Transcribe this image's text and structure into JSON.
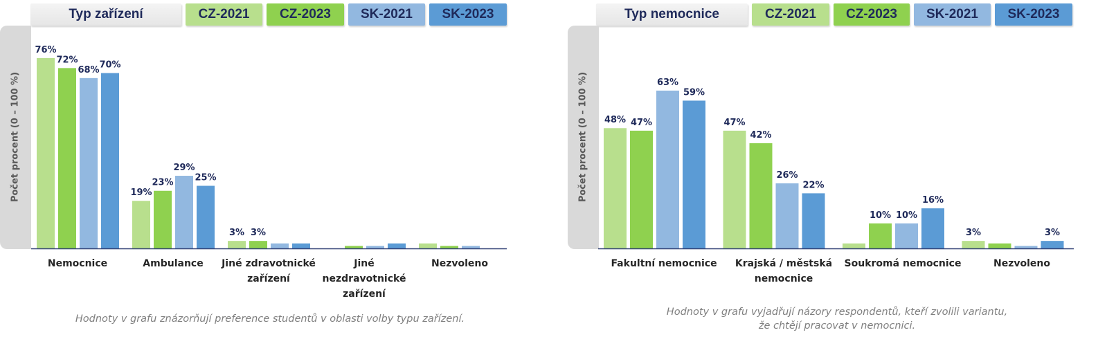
{
  "legend": {
    "series": [
      {
        "name": "CZ-2021",
        "color": "#b8df8d"
      },
      {
        "name": "CZ-2023",
        "color": "#8fd14f"
      },
      {
        "name": "SK-2021",
        "color": "#92b8e0"
      },
      {
        "name": "SK-2023",
        "color": "#5b9bd5"
      }
    ]
  },
  "chart_data": [
    {
      "type": "bar",
      "title": "Typ zařízení",
      "ylabel": "Počet procent  (0 – 100 %)",
      "ylim": [
        0,
        100
      ],
      "grid": false,
      "legend_position": "top",
      "categories": [
        [
          "Nemocnice"
        ],
        [
          "Ambulance"
        ],
        [
          "Jiné zdravotnické",
          "zařízení"
        ],
        [
          "Jiné",
          "nezdravotnické",
          "zařízení"
        ],
        [
          "Nezvoleno"
        ]
      ],
      "series": [
        {
          "name": "CZ-2021",
          "values": [
            76,
            19,
            3,
            0,
            2
          ],
          "labels": [
            "76%",
            "19%",
            "3%",
            "",
            ""
          ]
        },
        {
          "name": "CZ-2023",
          "values": [
            72,
            23,
            3,
            1,
            1
          ],
          "labels": [
            "72%",
            "23%",
            "3%",
            "",
            ""
          ]
        },
        {
          "name": "SK-2021",
          "values": [
            68,
            29,
            2,
            1,
            1
          ],
          "labels": [
            "68%",
            "29%",
            "",
            "",
            ""
          ]
        },
        {
          "name": "SK-2023",
          "values": [
            70,
            25,
            2,
            2,
            0
          ],
          "labels": [
            "70%",
            "25%",
            "",
            "",
            ""
          ]
        }
      ],
      "note": [
        "Hodnoty v grafu znázorňují preference studentů v oblasti volby typu zařízení."
      ]
    },
    {
      "type": "bar",
      "title": "Typ nemocnice",
      "ylabel": "Počet procent  (0 – 100 %)",
      "ylim": [
        0,
        100
      ],
      "grid": false,
      "legend_position": "top",
      "categories": [
        [
          "Fakultní nemocnice"
        ],
        [
          "Krajská / městská",
          "nemocnice"
        ],
        [
          "Soukromá nemocnice"
        ],
        [
          "Nezvoleno"
        ]
      ],
      "series": [
        {
          "name": "CZ-2021",
          "values": [
            48,
            47,
            2,
            3
          ],
          "labels": [
            "48%",
            "47%",
            "",
            "3%"
          ]
        },
        {
          "name": "CZ-2023",
          "values": [
            47,
            42,
            10,
            2
          ],
          "labels": [
            "47%",
            "42%",
            "10%",
            ""
          ]
        },
        {
          "name": "SK-2021",
          "values": [
            63,
            26,
            10,
            1
          ],
          "labels": [
            "63%",
            "26%",
            "10%",
            ""
          ]
        },
        {
          "name": "SK-2023",
          "values": [
            59,
            22,
            16,
            3
          ],
          "labels": [
            "59%",
            "22%",
            "16%",
            "3%"
          ]
        }
      ],
      "note": [
        "Hodnoty v grafu vyjadřují názory respondentů, kteří zvolili variantu,",
        "že chtějí pracovat v nemocnici."
      ]
    }
  ]
}
